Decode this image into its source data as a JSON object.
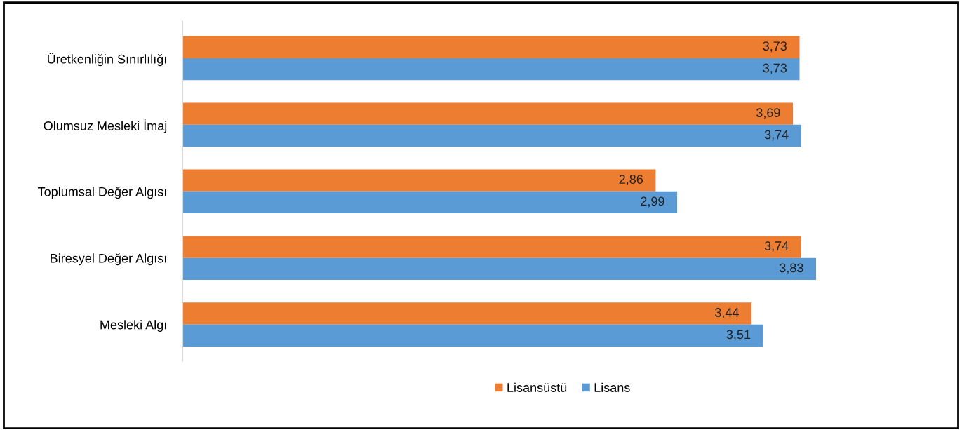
{
  "chart_data": {
    "type": "bar",
    "orientation": "horizontal",
    "categories": [
      "Üretkenliğin Sınırlılığı",
      "Olumsuz Mesleki İmaj",
      "Toplumsal Değer Algısı",
      "Biresyel Değer Algısı",
      "Mesleki Algı"
    ],
    "series": [
      {
        "name": "Lisansüstü",
        "color": "#ed7d31",
        "values": [
          3.73,
          3.69,
          2.86,
          3.74,
          3.44
        ],
        "value_labels": [
          "3,73",
          "3,69",
          "2,86",
          "3,74",
          "3,44"
        ]
      },
      {
        "name": "Lisans",
        "color": "#5b9bd5",
        "values": [
          3.73,
          3.74,
          2.99,
          3.83,
          3.51
        ],
        "value_labels": [
          "3,73",
          "3,74",
          "2,99",
          "3,83",
          "3,51"
        ]
      }
    ],
    "grid": false,
    "legend": "bottom",
    "tick_labels": "y"
  }
}
